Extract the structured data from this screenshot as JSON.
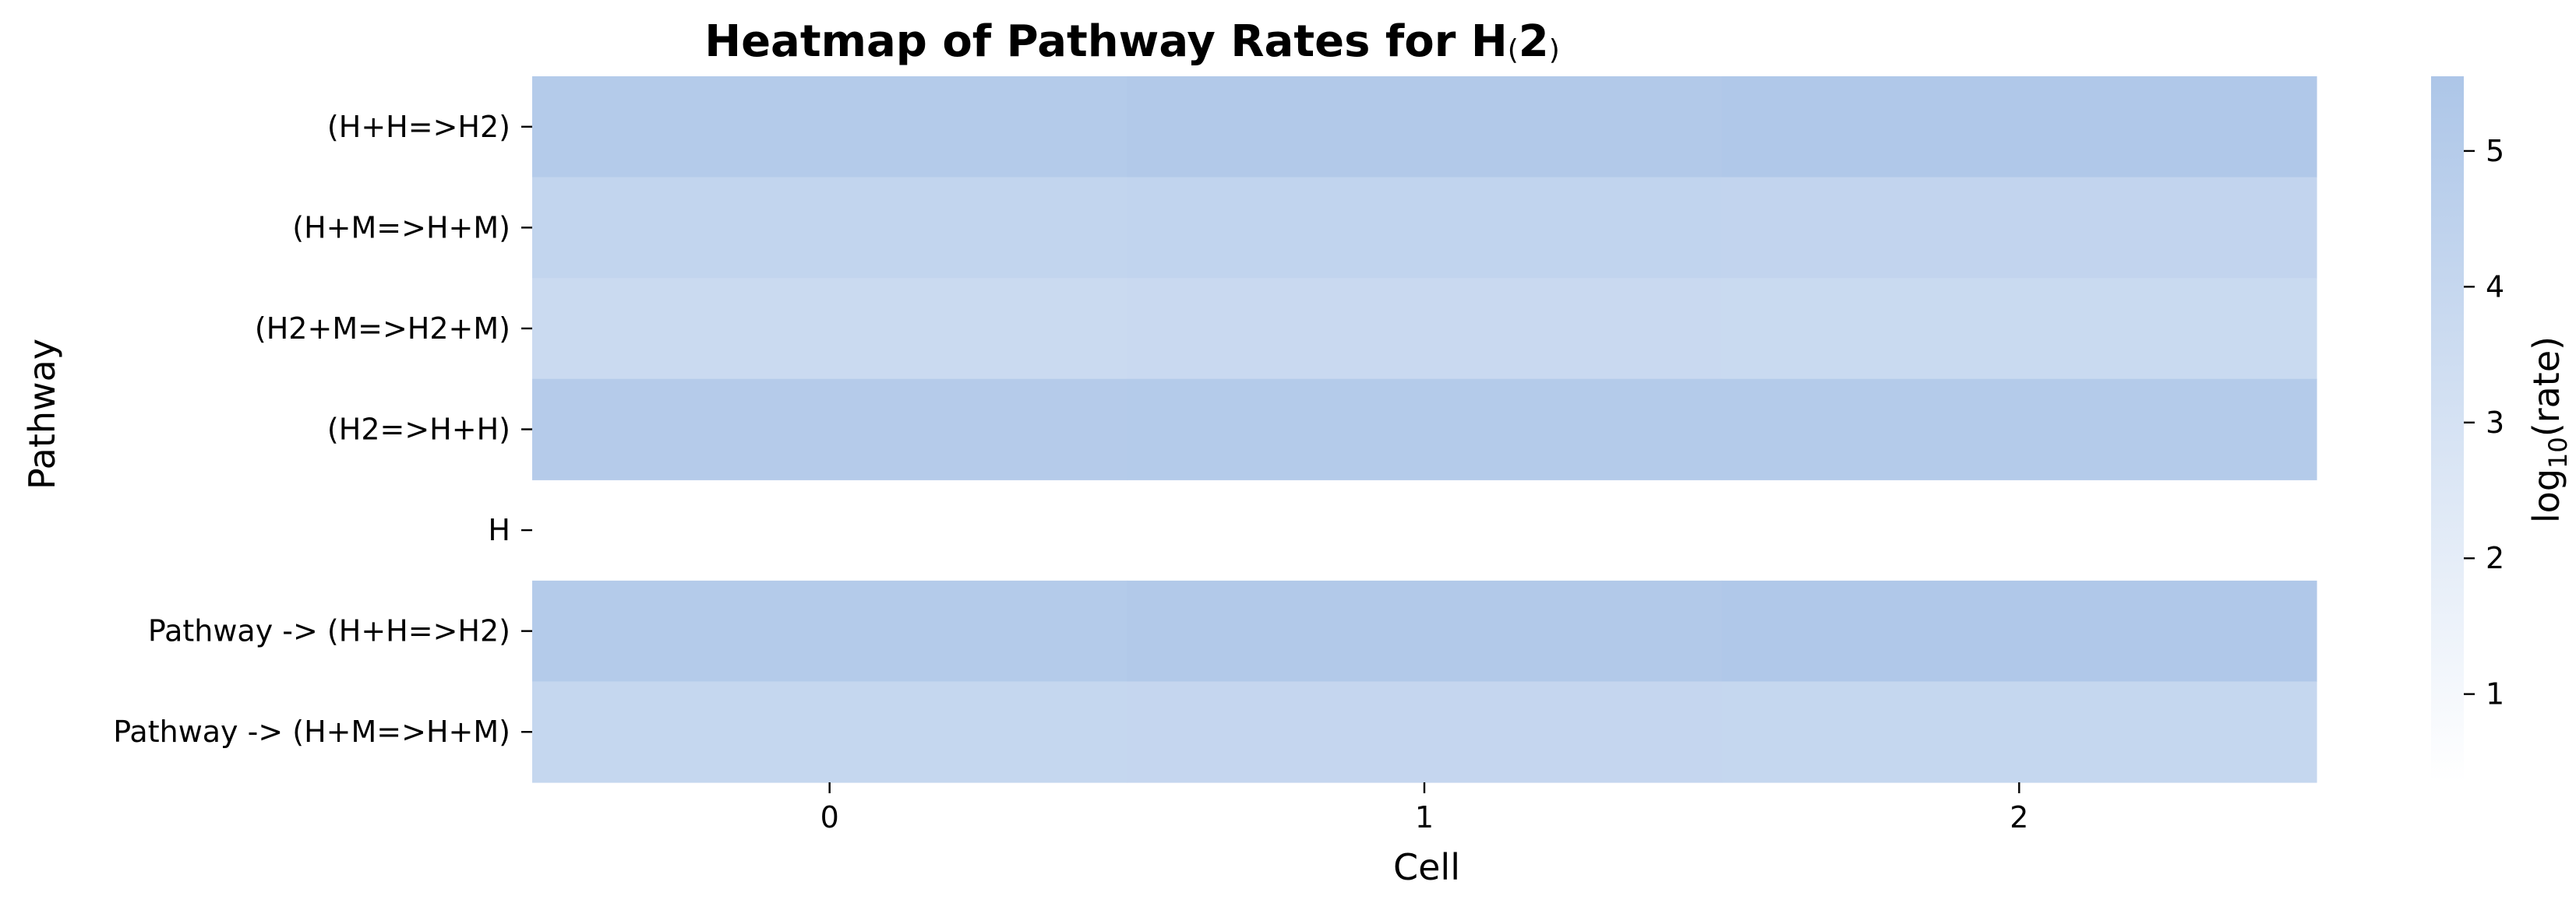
{
  "chart_data": {
    "type": "heatmap",
    "title_main": "Heatmap of Pathway Rates for H",
    "title_paren_open": "(",
    "title_paren_value": "2",
    "title_paren_close": ")",
    "xlabel": "Cell",
    "ylabel": "Pathway",
    "x_categories": [
      "0",
      "1",
      "2"
    ],
    "y_categories": [
      "(H+H=>H2)",
      "(H+M=>H+M)",
      "(H2+M=>H2+M)",
      "(H2=>H+H)",
      "H",
      "Pathway -> (H+H=>H2)",
      "Pathway -> (H+M=>H+M)"
    ],
    "values": [
      [
        5.1,
        5.25,
        5.35
      ],
      [
        4.2,
        4.3,
        4.25
      ],
      [
        3.7,
        3.8,
        3.75
      ],
      [
        5.05,
        5.1,
        5.1
      ],
      [
        null,
        null,
        null
      ],
      [
        5.1,
        5.25,
        5.35
      ],
      [
        4.0,
        4.05,
        4.0
      ]
    ],
    "colorbar": {
      "label_main": "log",
      "label_sub": "10",
      "label_rest": "(rate)",
      "min": 0.35,
      "max": 5.55,
      "ticks": [
        "1",
        "2",
        "3",
        "4",
        "5"
      ],
      "color_low": "#ffffff",
      "color_high": "#adc6e8"
    },
    "grid": false
  }
}
